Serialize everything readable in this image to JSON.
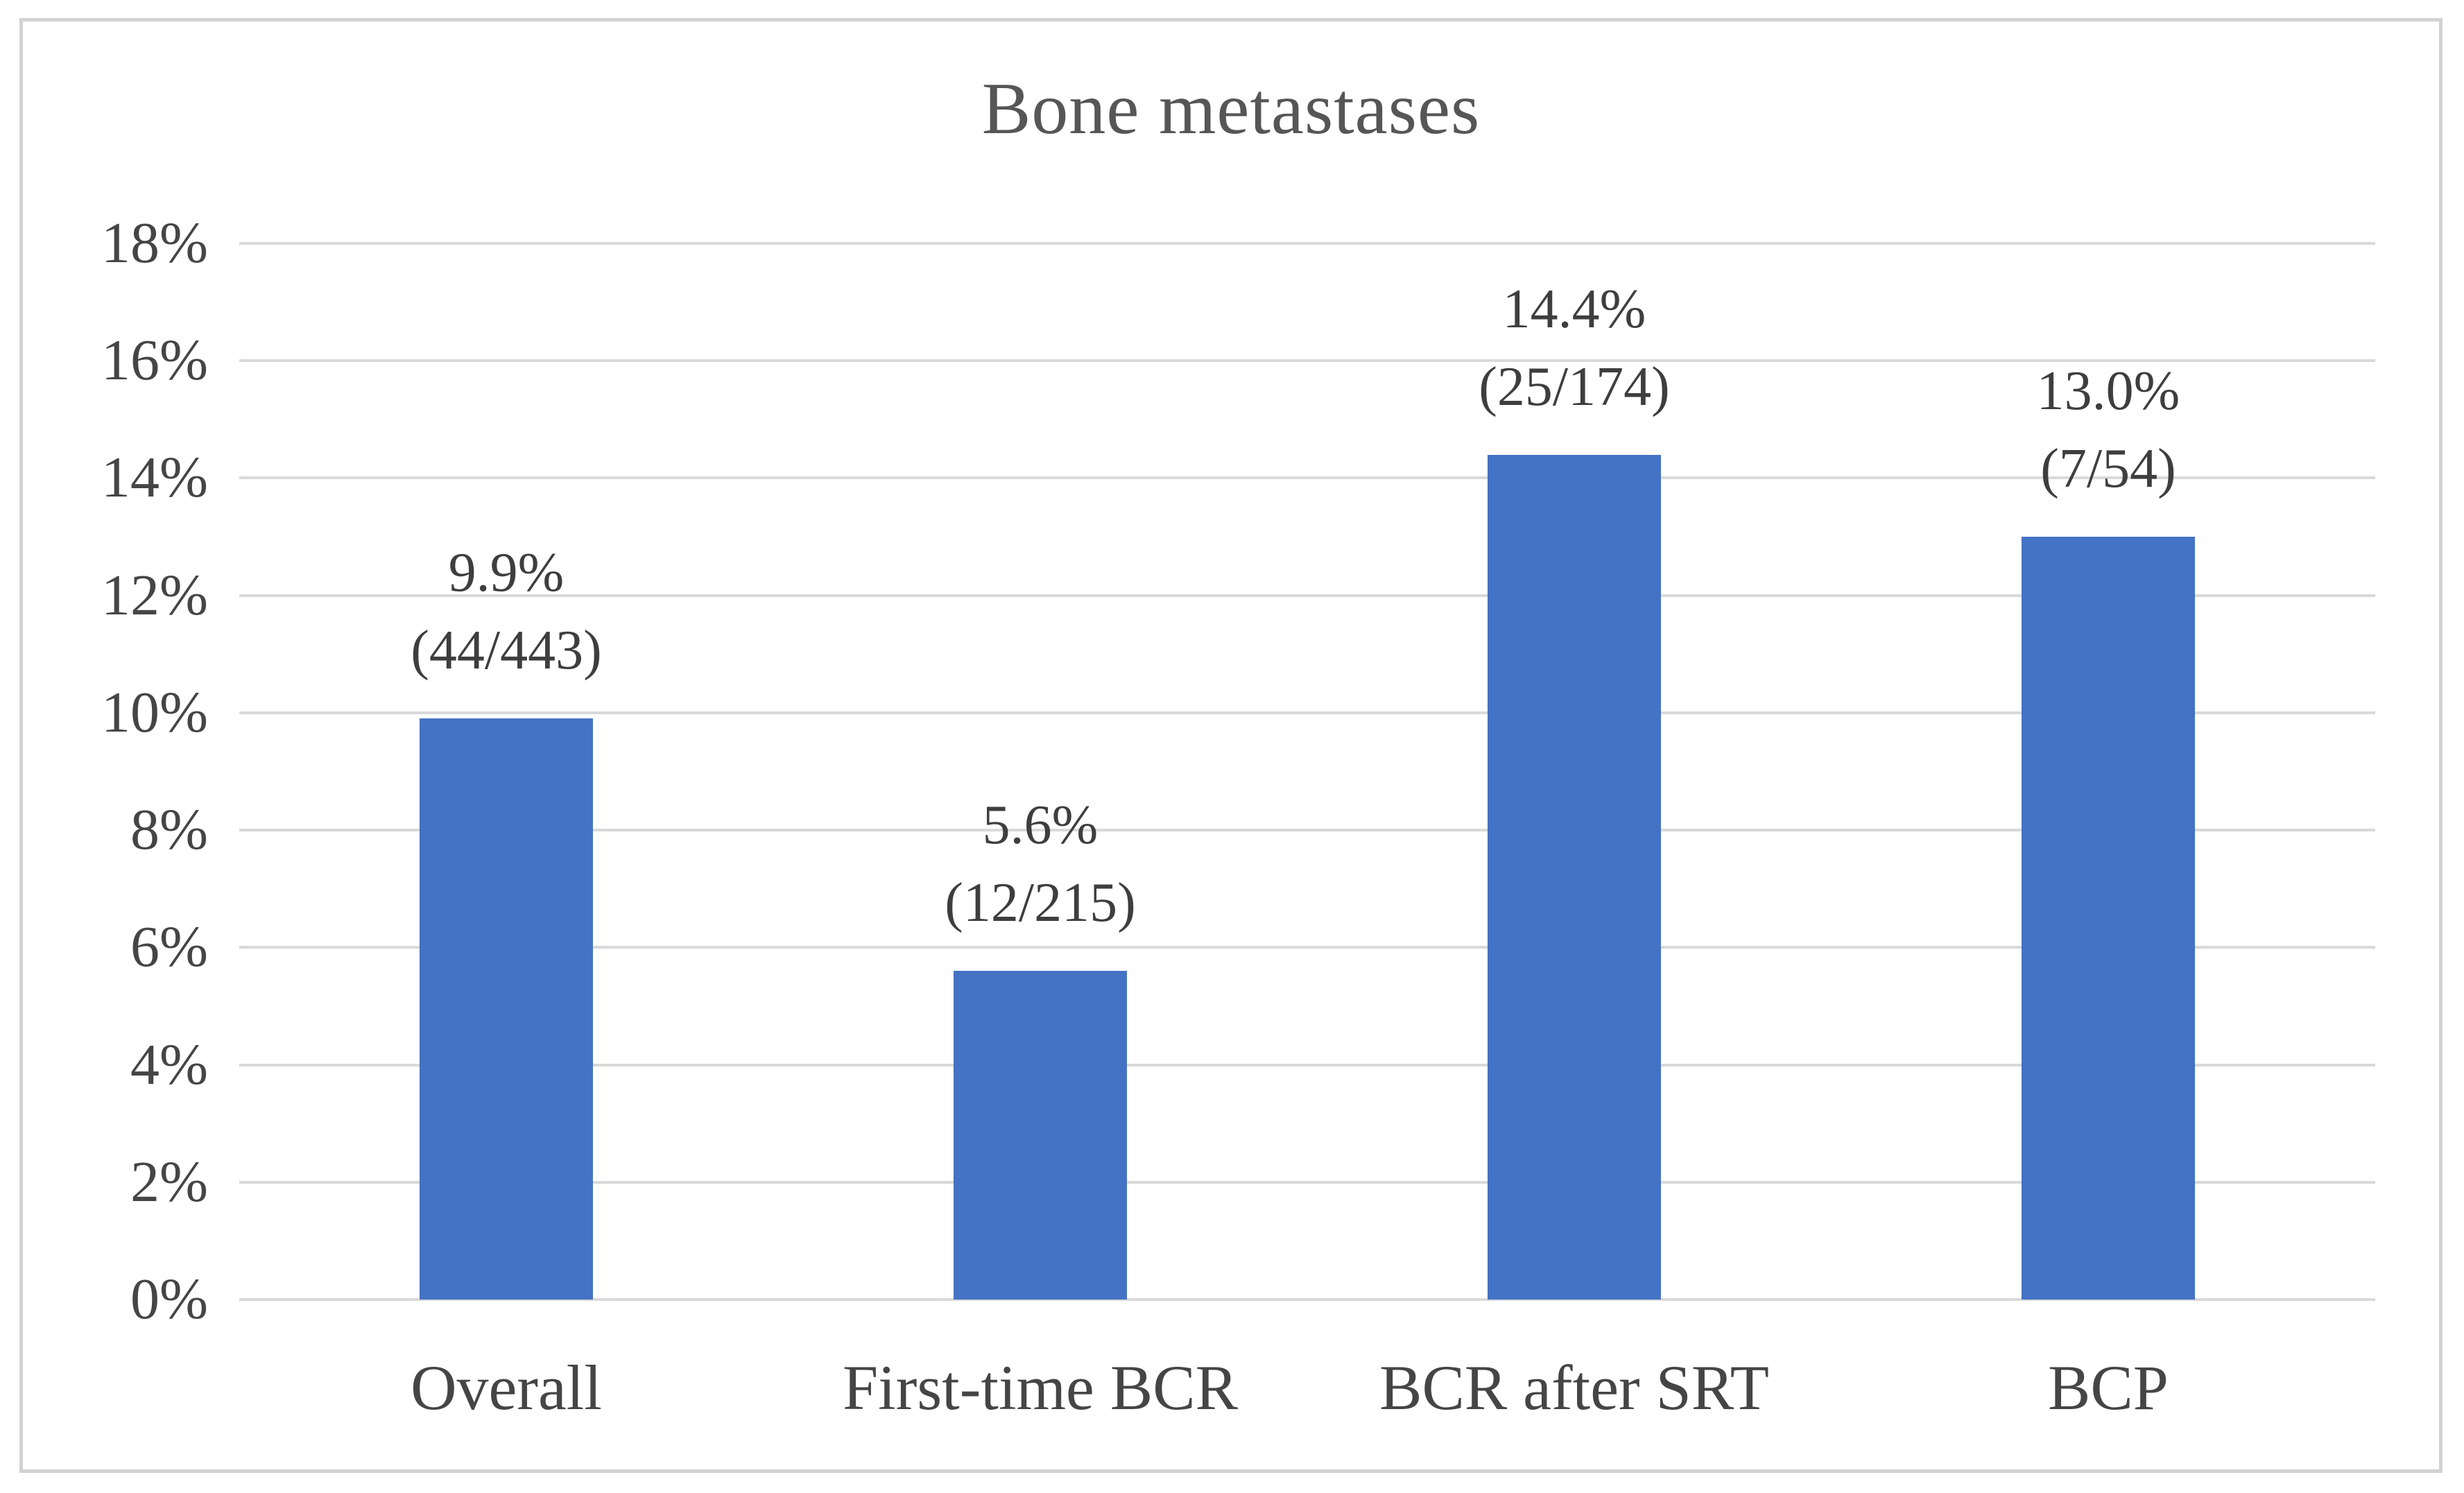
{
  "figure": {
    "title": "Bone metastases"
  },
  "chart_data": {
    "type": "bar",
    "title": "Bone metastases",
    "categories": [
      "Overall",
      "First-time BCR",
      "BCR after SRT",
      "BCP"
    ],
    "values": [
      9.9,
      5.6,
      14.4,
      13.0
    ],
    "bar_labels": [
      {
        "percent": "9.9%",
        "fraction": "(44/443)"
      },
      {
        "percent": "5.6%",
        "fraction": "(12/215)"
      },
      {
        "percent": "14.4%",
        "fraction": "(25/174)"
      },
      {
        "percent": "13.0%",
        "fraction": "(7/54)"
      }
    ],
    "counts": [
      {
        "events": 44,
        "total": 443
      },
      {
        "events": 12,
        "total": 215
      },
      {
        "events": 25,
        "total": 174
      },
      {
        "events": 7,
        "total": 54
      }
    ],
    "xlabel": "",
    "ylabel": "",
    "ylim": [
      0,
      18
    ],
    "ytick_values": [
      0,
      2,
      4,
      6,
      8,
      10,
      12,
      14,
      16,
      18
    ],
    "ytick_labels": [
      "0%",
      "2%",
      "4%",
      "6%",
      "8%",
      "10%",
      "12%",
      "14%",
      "16%",
      "18%"
    ],
    "grid": "horizontal-on",
    "legend": "none",
    "colors": {
      "bar": "#4472c4",
      "gridline": "#d9d9d9",
      "frame_border": "#d2d2d2",
      "title_text": "#565656",
      "axis_text": "#454545",
      "data_label_text": "#3e3e3e",
      "background": "#ffffff"
    }
  }
}
